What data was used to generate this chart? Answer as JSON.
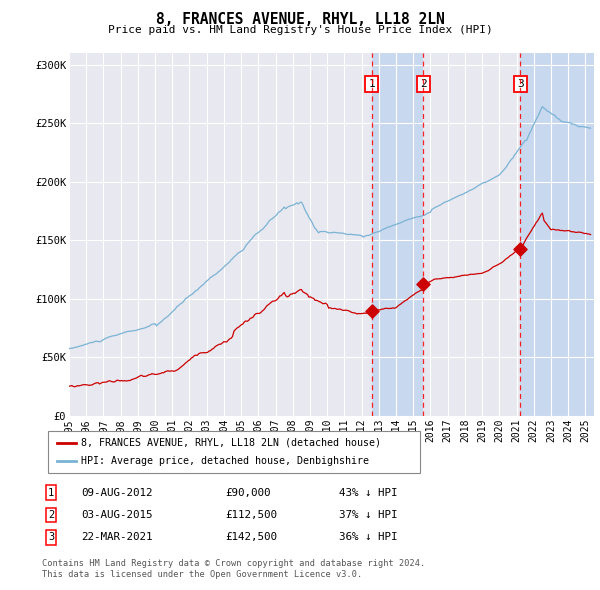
{
  "title": "8, FRANCES AVENUE, RHYL, LL18 2LN",
  "subtitle": "Price paid vs. HM Land Registry's House Price Index (HPI)",
  "ylim": [
    0,
    310000
  ],
  "yticks": [
    0,
    50000,
    100000,
    150000,
    200000,
    250000,
    300000
  ],
  "ytick_labels": [
    "£0",
    "£50K",
    "£100K",
    "£150K",
    "£200K",
    "£250K",
    "£300K"
  ],
  "xlim_start": 1995.0,
  "xlim_end": 2025.5,
  "xtick_years": [
    1995,
    1996,
    1997,
    1998,
    1999,
    2000,
    2001,
    2002,
    2003,
    2004,
    2005,
    2006,
    2007,
    2008,
    2009,
    2010,
    2011,
    2012,
    2013,
    2014,
    2015,
    2016,
    2017,
    2018,
    2019,
    2020,
    2021,
    2022,
    2023,
    2024,
    2025
  ],
  "sale1_x": 2012.6,
  "sale1_y": 90000,
  "sale1_label": "1",
  "sale1_date": "09-AUG-2012",
  "sale1_price": "£90,000",
  "sale1_hpi": "43% ↓ HPI",
  "sale2_x": 2015.58,
  "sale2_y": 112500,
  "sale2_label": "2",
  "sale2_date": "03-AUG-2015",
  "sale2_price": "£112,500",
  "sale2_hpi": "37% ↓ HPI",
  "sale3_x": 2021.22,
  "sale3_y": 142500,
  "sale3_label": "3",
  "sale3_date": "22-MAR-2021",
  "sale3_price": "£142,500",
  "sale3_hpi": "36% ↓ HPI",
  "hpi_color": "#7ab3d4",
  "sale_color": "#cc0000",
  "bg_color": "#ffffff",
  "plot_bg_color": "#e8e8f0",
  "shade_color": "#c8d8ee",
  "grid_color": "#ffffff",
  "legend_label_sale": "8, FRANCES AVENUE, RHYL, LL18 2LN (detached house)",
  "legend_label_hpi": "HPI: Average price, detached house, Denbighshire",
  "footer_line1": "Contains HM Land Registry data © Crown copyright and database right 2024.",
  "footer_line2": "This data is licensed under the Open Government Licence v3.0."
}
